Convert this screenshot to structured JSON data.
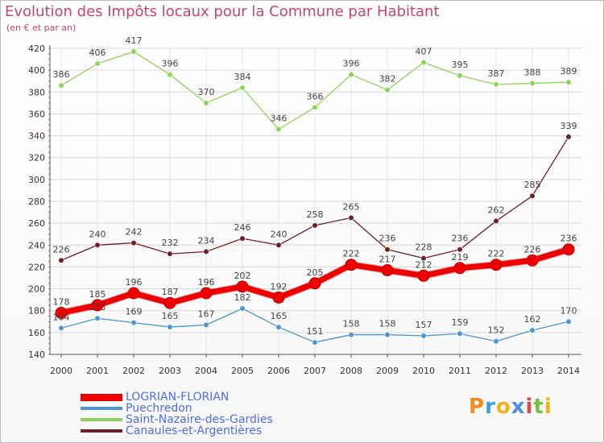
{
  "title": "Evolution des Impôts locaux pour la Commune par Habitant",
  "subtitle": "(en € et par an)",
  "logo": "Proxiti",
  "chart_data": {
    "type": "line",
    "title": "Evolution des Impôts locaux pour la Commune par Habitant",
    "subtitle": "(en € et par an)",
    "x": [
      "2000",
      "2001",
      "2002",
      "2003",
      "2004",
      "2005",
      "2006",
      "2007",
      "2008",
      "2009",
      "2010",
      "2011",
      "2012",
      "2013",
      "2014"
    ],
    "ylim": [
      140,
      420
    ],
    "yticks": [
      140,
      160,
      180,
      200,
      220,
      240,
      260,
      280,
      300,
      320,
      340,
      360,
      380,
      400,
      420
    ],
    "grid": true,
    "legend_position": "bottom-left",
    "series": [
      {
        "name": "Saint-Nazaire-des-Gardies",
        "color": "#8fd45a",
        "values": [
          386,
          406,
          417,
          396,
          370,
          384,
          346,
          366,
          396,
          382,
          407,
          395,
          387,
          388,
          389
        ]
      },
      {
        "name": "Canaules-et-Argentières",
        "color": "#6e1e24",
        "values": [
          226,
          240,
          242,
          232,
          234,
          246,
          240,
          258,
          265,
          236,
          228,
          236,
          262,
          285,
          339
        ]
      },
      {
        "name": "Puechredon",
        "color": "#4f95d0",
        "values": [
          164,
          173,
          169,
          165,
          167,
          182,
          165,
          151,
          158,
          158,
          157,
          159,
          152,
          162,
          170
        ]
      },
      {
        "name": "LOGRIAN-FLORIAN",
        "color": "#ee0000",
        "values": [
          178,
          185,
          196,
          187,
          196,
          202,
          192,
          205,
          222,
          217,
          212,
          219,
          222,
          226,
          236
        ]
      }
    ],
    "legend_order": [
      "LOGRIAN-FLORIAN",
      "Puechredon",
      "Saint-Nazaire-des-Gardies",
      "Canaules-et-Argentières"
    ],
    "point_labels": {
      "LOGRIAN-FLORIAN": [
        "178",
        "185",
        "196",
        "187",
        "196",
        "202",
        "192",
        "205",
        "222",
        "217",
        "212",
        "219",
        "222",
        "226",
        "236"
      ],
      "Puechredon": [
        "164",
        "173",
        "169",
        "165",
        "167",
        "182",
        "165",
        "151",
        "158",
        "158",
        "157",
        "159",
        "152",
        "162",
        "170"
      ],
      "Saint-Nazaire-des-Gardies": [
        "386",
        "406",
        "417",
        "396",
        "370",
        "384",
        "346",
        "366",
        "396",
        "382",
        "407",
        "395",
        "387",
        "388",
        "389"
      ],
      "Canaules-et-Argentières": [
        "226",
        "240",
        "242",
        "232",
        "234",
        "246",
        "240",
        "258",
        "265",
        "236",
        "228",
        "236",
        "262",
        "285",
        "339"
      ]
    }
  }
}
